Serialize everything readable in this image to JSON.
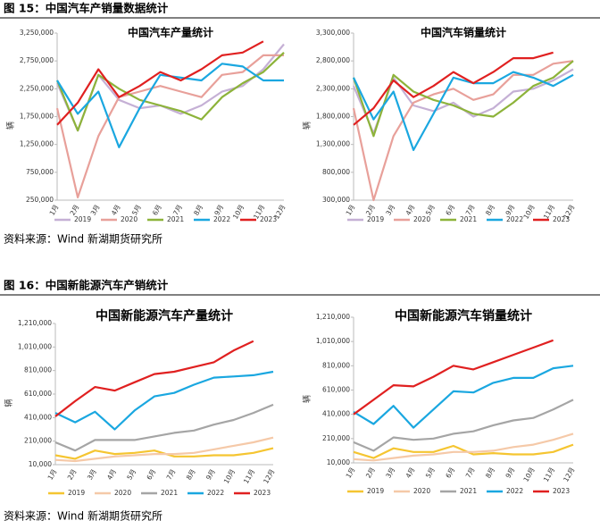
{
  "figures": [
    {
      "title": "图 15：中国汽车产销量数据统计",
      "source": "资料来源：Wind 新湖期货研究所"
    },
    {
      "title": "图 16：中国新能源汽车产销统计",
      "source": "资料来源：Wind 新湖期货研究所"
    }
  ],
  "chart_data": [
    {
      "type": "line",
      "title": "中国汽车产量统计",
      "ylabel": "辆",
      "grid": false,
      "categories": [
        "1月",
        "2月",
        "3月",
        "4月",
        "5月",
        "6月",
        "7月",
        "8月",
        "9月",
        "10月",
        "11月",
        "12月"
      ],
      "ylim": [
        250000,
        3250000
      ],
      "yticks": [
        {
          "value": 250000,
          "label": "250,000"
        },
        {
          "value": 750000,
          "label": "750,000"
        },
        {
          "value": 1250000,
          "label": "1,250,000"
        },
        {
          "value": 1750000,
          "label": "1,750,000"
        },
        {
          "value": 2250000,
          "label": "2,250,000"
        },
        {
          "value": 2750000,
          "label": "2,750,000"
        },
        {
          "value": 3250000,
          "label": "3,250,000"
        }
      ],
      "series": [
        {
          "name": "2019",
          "color": "#c5b0d5",
          "values": [
            2350000,
            1500000,
            2500000,
            2050000,
            1900000,
            1950000,
            1800000,
            1950000,
            2200000,
            2300000,
            2600000,
            3050000
          ]
        },
        {
          "name": "2020",
          "color": "#e8a09a",
          "values": [
            1900000,
            300000,
            1400000,
            2100000,
            2200000,
            2300000,
            2200000,
            2100000,
            2500000,
            2550000,
            2850000,
            2850000
          ]
        },
        {
          "name": "2021",
          "color": "#8db33a",
          "values": [
            2400000,
            1500000,
            2500000,
            2250000,
            2050000,
            1950000,
            1850000,
            1700000,
            2100000,
            2350000,
            2550000,
            2900000
          ]
        },
        {
          "name": "2022",
          "color": "#1aa7e0",
          "values": [
            2400000,
            1800000,
            2200000,
            1200000,
            1900000,
            2500000,
            2450000,
            2400000,
            2700000,
            2650000,
            2400000,
            2400000
          ]
        },
        {
          "name": "2023",
          "color": "#e02020",
          "values": [
            1600000,
            2000000,
            2600000,
            2100000,
            2300000,
            2550000,
            2400000,
            2600000,
            2850000,
            2900000,
            3100000,
            null
          ]
        }
      ]
    },
    {
      "type": "line",
      "title": "中国汽车销量统计",
      "ylabel": "辆",
      "grid": false,
      "categories": [
        "1月",
        "2月",
        "3月",
        "4月",
        "5月",
        "6月",
        "7月",
        "8月",
        "9月",
        "10月",
        "11月",
        "12月"
      ],
      "ylim": [
        300000,
        3300000
      ],
      "yticks": [
        {
          "value": 300000,
          "label": "300,000"
        },
        {
          "value": 800000,
          "label": "800,000"
        },
        {
          "value": 1300000,
          "label": "1,300,000"
        },
        {
          "value": 1800000,
          "label": "1,800,000"
        },
        {
          "value": 2300000,
          "label": "2,300,000"
        },
        {
          "value": 2800000,
          "label": "2,800,000"
        },
        {
          "value": 3300000,
          "label": "3,300,000"
        }
      ],
      "series": [
        {
          "name": "2019",
          "color": "#c5b0d5",
          "values": [
            2350000,
            1500000,
            2500000,
            2000000,
            1900000,
            2050000,
            1800000,
            1950000,
            2250000,
            2300000,
            2450000,
            2650000
          ]
        },
        {
          "name": "2020",
          "color": "#e8a09a",
          "values": [
            1950000,
            300000,
            1450000,
            2050000,
            2200000,
            2300000,
            2100000,
            2200000,
            2550000,
            2550000,
            2750000,
            2800000
          ]
        },
        {
          "name": "2021",
          "color": "#8db33a",
          "values": [
            2500000,
            1450000,
            2550000,
            2250000,
            2100000,
            2000000,
            1850000,
            1800000,
            2050000,
            2350000,
            2500000,
            2800000
          ]
        },
        {
          "name": "2022",
          "color": "#1aa7e0",
          "values": [
            2500000,
            1750000,
            2250000,
            1200000,
            1850000,
            2500000,
            2400000,
            2400000,
            2600000,
            2500000,
            2350000,
            2550000
          ]
        },
        {
          "name": "2023",
          "color": "#e02020",
          "values": [
            1650000,
            1950000,
            2450000,
            2150000,
            2350000,
            2600000,
            2400000,
            2600000,
            2850000,
            2850000,
            2950000,
            null
          ]
        }
      ]
    },
    {
      "type": "line",
      "title": "中国新能源汽车产量统计",
      "ylabel": "辆",
      "grid": false,
      "categories": [
        "1月",
        "2月",
        "3月",
        "4月",
        "5月",
        "6月",
        "7月",
        "8月",
        "9月",
        "10月",
        "11月",
        "12月"
      ],
      "ylim": [
        10000,
        1210000
      ],
      "yticks": [
        {
          "value": 10000,
          "label": "10,000"
        },
        {
          "value": 210000,
          "label": "210,000"
        },
        {
          "value": 410000,
          "label": "410,000"
        },
        {
          "value": 610000,
          "label": "610,000"
        },
        {
          "value": 810000,
          "label": "810,000"
        },
        {
          "value": 1010000,
          "label": "1,010,000"
        },
        {
          "value": 1210000,
          "label": "1,210,000"
        }
      ],
      "series": [
        {
          "name": "2019",
          "color": "#f5c531",
          "values": [
            90000,
            60000,
            130000,
            100000,
            110000,
            130000,
            80000,
            80000,
            90000,
            90000,
            110000,
            150000
          ]
        },
        {
          "name": "2020",
          "color": "#f5c9a8",
          "values": [
            50000,
            40000,
            60000,
            80000,
            90000,
            100000,
            100000,
            110000,
            140000,
            170000,
            200000,
            240000
          ]
        },
        {
          "name": "2021",
          "color": "#a5a5a5",
          "values": [
            200000,
            130000,
            220000,
            220000,
            220000,
            250000,
            280000,
            300000,
            350000,
            390000,
            450000,
            520000
          ]
        },
        {
          "name": "2022",
          "color": "#1aa7e0",
          "values": [
            450000,
            370000,
            460000,
            310000,
            470000,
            590000,
            620000,
            690000,
            750000,
            760000,
            770000,
            800000
          ]
        },
        {
          "name": "2023",
          "color": "#e02020",
          "values": [
            420000,
            550000,
            670000,
            640000,
            710000,
            780000,
            800000,
            840000,
            880000,
            980000,
            1060000,
            null
          ]
        }
      ]
    },
    {
      "type": "line",
      "title": "中国新能源汽车销量统计",
      "ylabel": "辆",
      "grid": false,
      "categories": [
        "1月",
        "2月",
        "3月",
        "4月",
        "5月",
        "6月",
        "7月",
        "8月",
        "9月",
        "10月",
        "11月",
        "12月"
      ],
      "ylim": [
        10000,
        1210000
      ],
      "yticks": [
        {
          "value": 10000,
          "label": "10,000"
        },
        {
          "value": 210000,
          "label": "210,000"
        },
        {
          "value": 410000,
          "label": "410,000"
        },
        {
          "value": 610000,
          "label": "610,000"
        },
        {
          "value": 810000,
          "label": "810,000"
        },
        {
          "value": 1010000,
          "label": "1,010,000"
        },
        {
          "value": 1210000,
          "label": "1,210,000"
        }
      ],
      "series": [
        {
          "name": "2019",
          "color": "#f5c531",
          "values": [
            100000,
            50000,
            130000,
            100000,
            100000,
            150000,
            80000,
            90000,
            80000,
            80000,
            100000,
            160000
          ]
        },
        {
          "name": "2020",
          "color": "#f5c9a8",
          "values": [
            40000,
            30000,
            50000,
            70000,
            80000,
            100000,
            100000,
            110000,
            140000,
            160000,
            200000,
            250000
          ]
        },
        {
          "name": "2021",
          "color": "#a5a5a5",
          "values": [
            180000,
            110000,
            220000,
            200000,
            210000,
            250000,
            270000,
            320000,
            360000,
            380000,
            450000,
            530000
          ]
        },
        {
          "name": "2022",
          "color": "#1aa7e0",
          "values": [
            430000,
            330000,
            480000,
            300000,
            450000,
            600000,
            590000,
            670000,
            710000,
            710000,
            790000,
            810000
          ]
        },
        {
          "name": "2023",
          "color": "#e02020",
          "values": [
            410000,
            530000,
            650000,
            640000,
            720000,
            810000,
            780000,
            840000,
            900000,
            960000,
            1020000,
            null
          ]
        }
      ]
    }
  ]
}
